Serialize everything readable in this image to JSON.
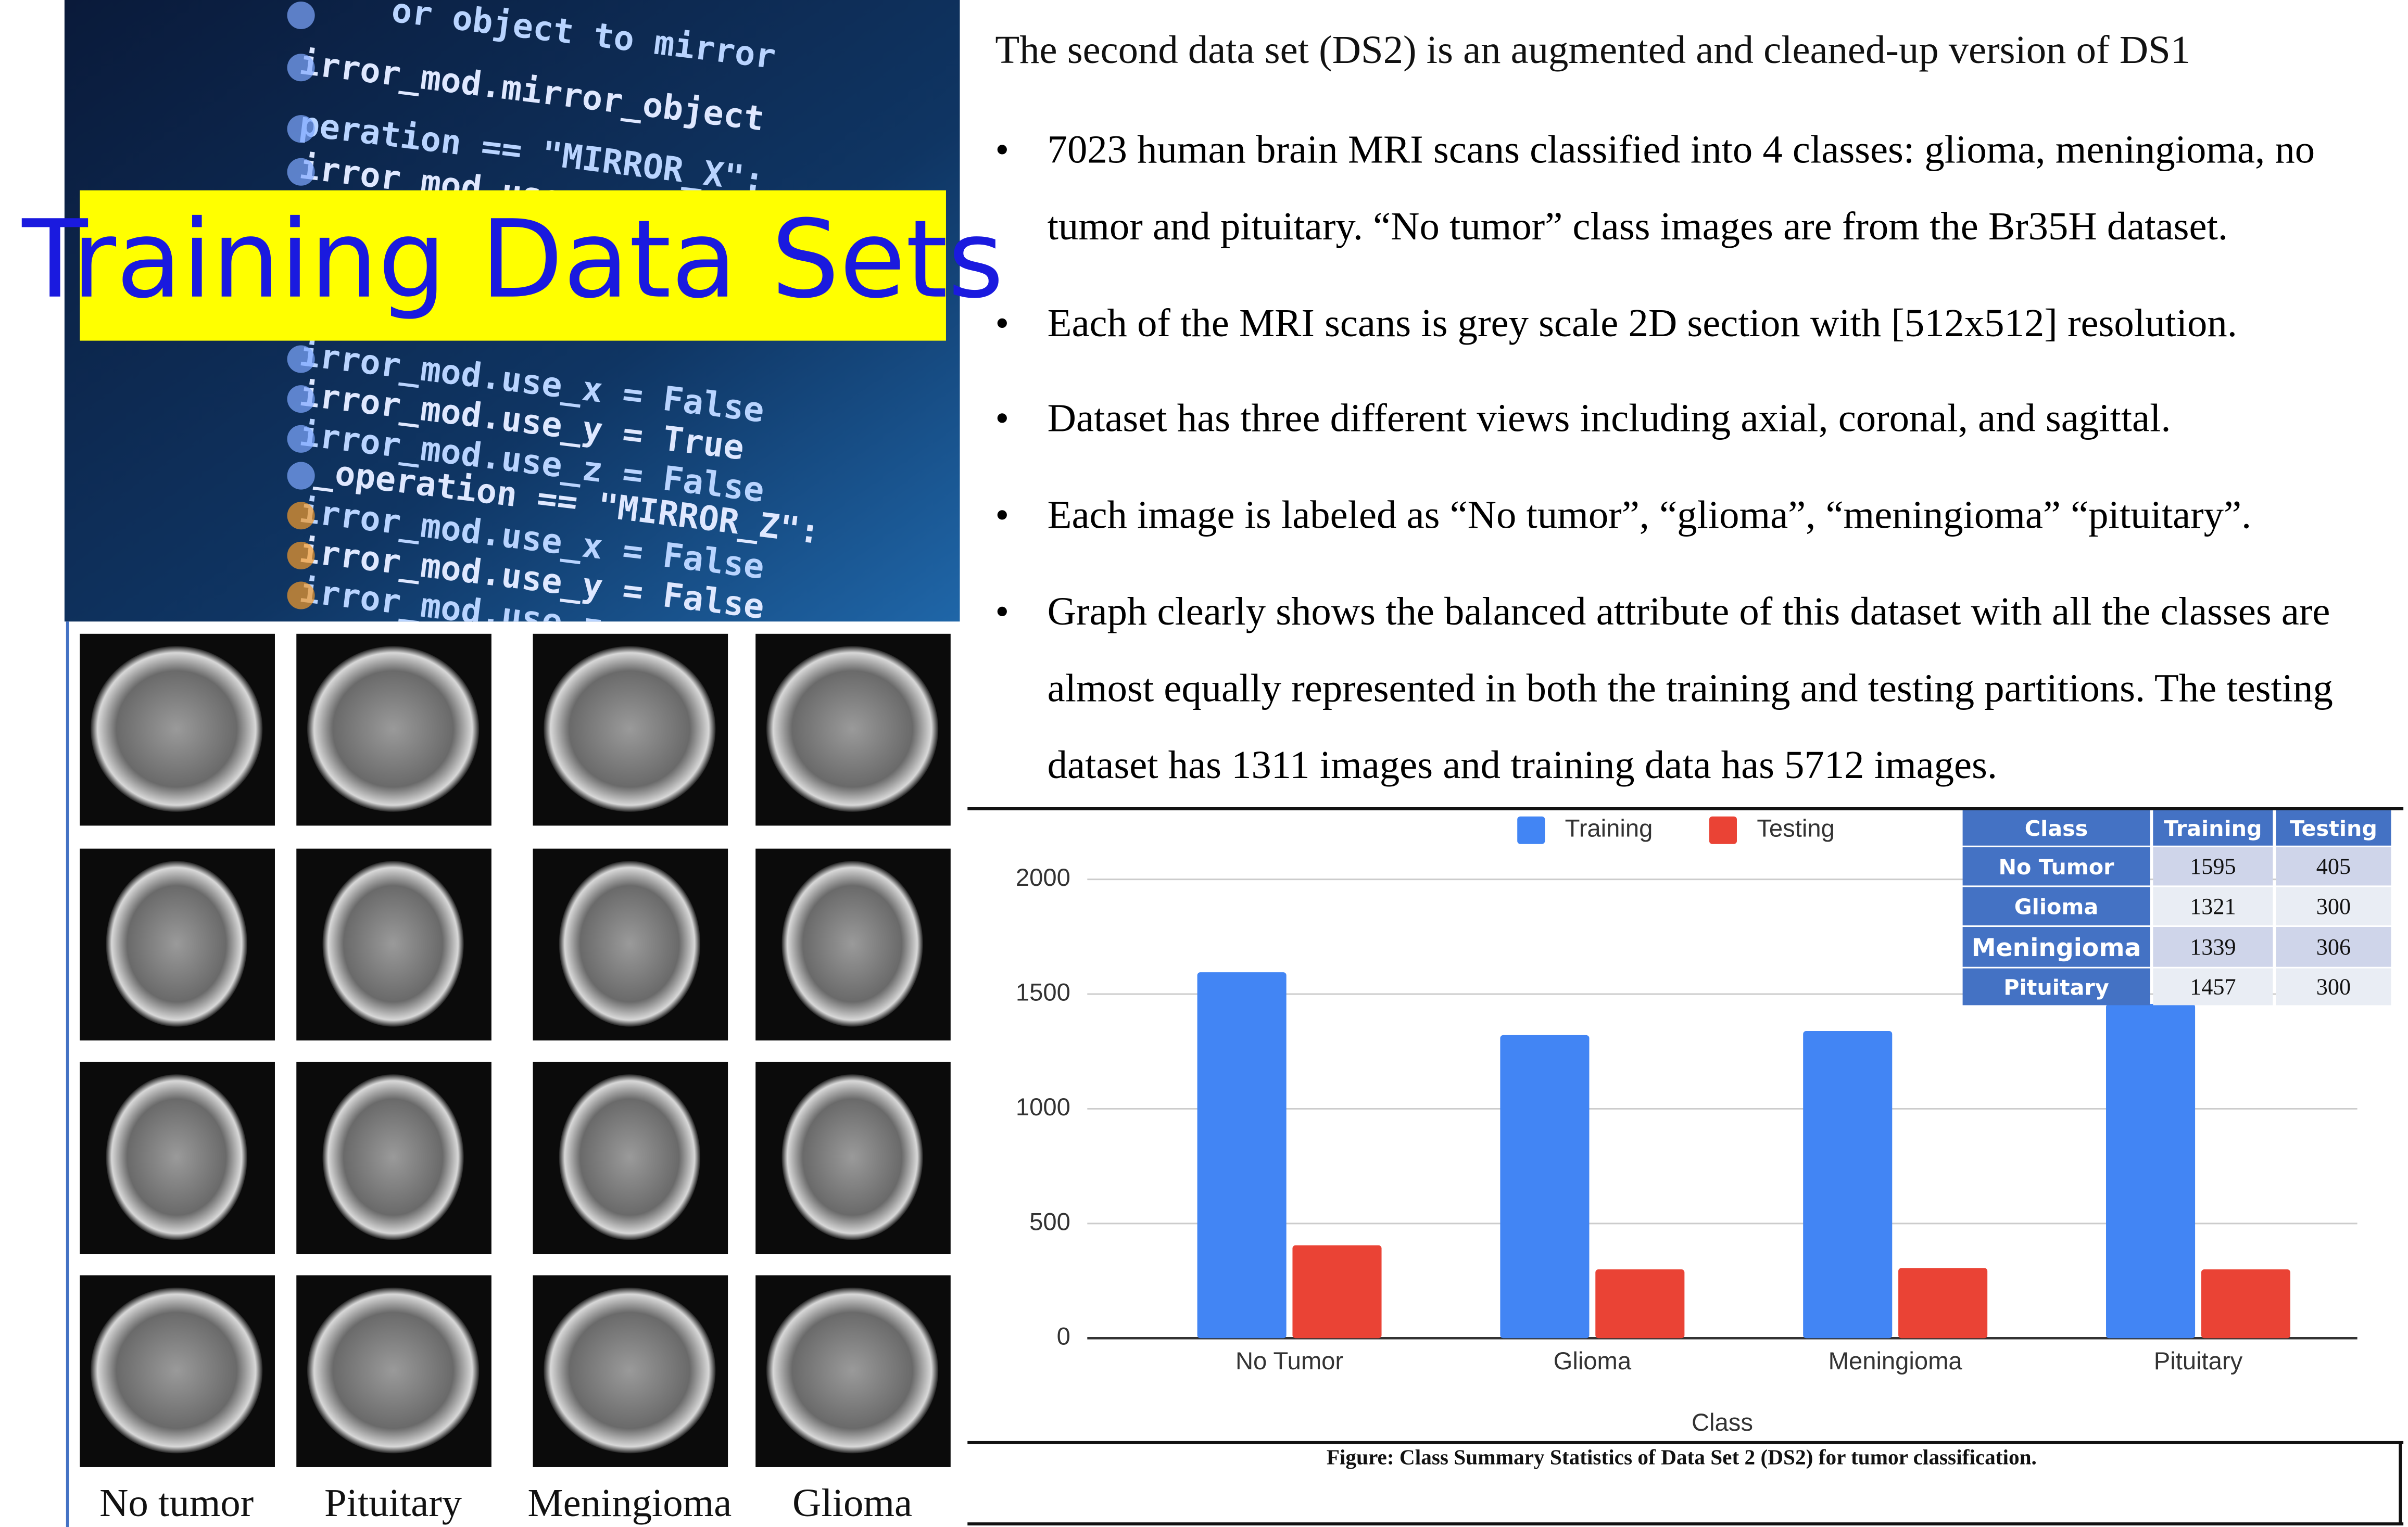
{
  "header": {
    "title": "Training Data Sets"
  },
  "code_lines": [
    "or object to mirror",
    "irror_mod.mirror_object",
    "peration == \"MIRROR_X\":",
    "irror_mod.use",
    "irror_mod.use_x = False",
    "irror_mod.use_y = True",
    "irror_mod.use_z = False",
    "_operation == \"MIRROR_Z\":",
    "irror_mod.use_x = False",
    "irror_mod.use_y = False",
    "irror_mod.use_z = True"
  ],
  "image_labels": [
    "No tumor",
    "Pituitary",
    "Meningioma",
    "Glioma"
  ],
  "intro": "The second data set (DS2) is an augmented and cleaned-up version of  DS1",
  "bullets": [
    "7023 human brain MRI scans classified into 4 classes: glioma, meningioma, no tumor and pituitary. “No tumor” class images are from the Br35H dataset.",
    "Each of the MRI scans is grey scale 2D section with [512x512] resolution.",
    "Dataset has three different views including axial, coronal, and sagittal.",
    "Each image is labeled as “No tumor”, “glioma”, “meningioma”  “pituitary”.",
    "Graph clearly shows the balanced attribute of this dataset with all the classes are almost equally represented in both the training and testing partitions. The testing dataset has 1311 images and training data has 5712 images."
  ],
  "chart_data": {
    "type": "bar",
    "x_label": "Class",
    "categories": [
      "No Tumor",
      "Glioma",
      "Meningioma",
      "Pituitary"
    ],
    "series": [
      {
        "name": "Training",
        "color": "#4285f4",
        "values": [
          1595,
          1321,
          1339,
          1457
        ]
      },
      {
        "name": "Testing",
        "color": "#ea4335",
        "values": [
          405,
          300,
          306,
          300
        ]
      }
    ],
    "ylim": [
      0,
      2000
    ],
    "yticks": [
      0,
      500,
      1000,
      1500,
      2000
    ],
    "grid": true,
    "legend": "top"
  },
  "table": {
    "header": [
      "Class",
      "Training",
      "Testing"
    ],
    "rows": [
      [
        "No Tumor",
        1595,
        405
      ],
      [
        "Glioma",
        1321,
        300
      ],
      [
        "Meningioma",
        1339,
        306
      ],
      [
        "Pituitary",
        1457,
        300
      ]
    ]
  },
  "caption": "Figure: Class Summary Statistics of Data Set 2 (DS2) for tumor classification."
}
